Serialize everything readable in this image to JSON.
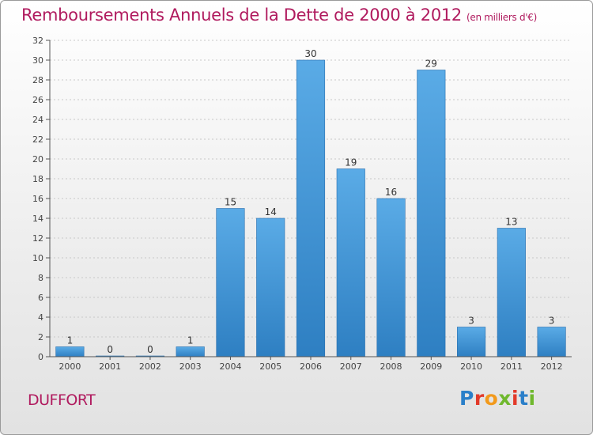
{
  "title": "Remboursements Annuels de la Dette de 2000 à 2012",
  "unit_label": "(en milliers d'€)",
  "town": "DUFFORT",
  "logo": {
    "letters": [
      "P",
      "r",
      "o",
      "x",
      "i",
      "t",
      "i"
    ],
    "colors": [
      "#2a7fc9",
      "#e23a2a",
      "#f29a1c",
      "#6fb82d",
      "#e23a2a",
      "#2a7fc9",
      "#6fb82d"
    ]
  },
  "colors": {
    "bar_top": "#5aabe6",
    "bar_bottom": "#2e7fc2",
    "axis": "#555555",
    "grid": "#c8c8c8",
    "title": "#b01a5e"
  },
  "chart_data": {
    "type": "bar",
    "title": "Remboursements Annuels de la Dette de 2000 à 2012",
    "xlabel": "",
    "ylabel": "en milliers d'€",
    "categories": [
      "2000",
      "2001",
      "2002",
      "2003",
      "2004",
      "2005",
      "2006",
      "2007",
      "2008",
      "2009",
      "2010",
      "2011",
      "2012"
    ],
    "values": [
      1,
      0,
      0,
      1,
      15,
      14,
      30,
      19,
      16,
      29,
      3,
      13,
      3
    ],
    "ylim": [
      0,
      32
    ],
    "yticks": [
      0,
      2,
      4,
      6,
      8,
      10,
      12,
      14,
      16,
      18,
      20,
      22,
      24,
      26,
      28,
      30,
      32
    ],
    "grid": true
  }
}
